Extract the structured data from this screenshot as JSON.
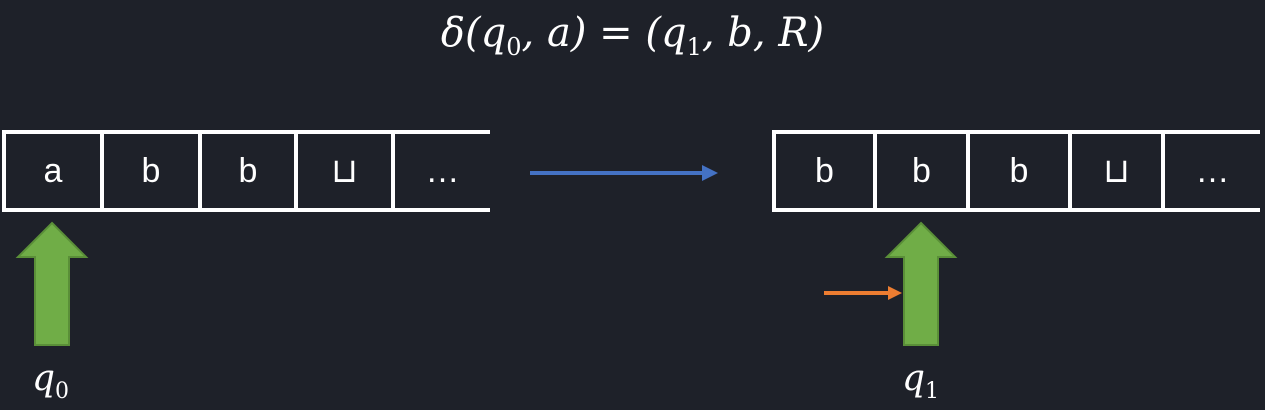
{
  "transition": {
    "fn": "δ",
    "state_in": "q",
    "state_in_index": "0",
    "symbol_in": "a",
    "state_out": "q",
    "state_out_index": "1",
    "symbol_out": "b",
    "direction": "R"
  },
  "tape_before": {
    "cells": [
      "a",
      "b",
      "b",
      "⊔",
      "…"
    ],
    "state_label": "q",
    "state_index": "0"
  },
  "tape_after": {
    "cells": [
      "b",
      "b",
      "b",
      "⊔",
      "…"
    ],
    "state_label": "q",
    "state_index": "1"
  },
  "colors": {
    "background": "#1e2129",
    "head_arrow": "#70ad47",
    "head_arrow_border": "#5a8f38",
    "transition_arrow": "#4472c4",
    "move_arrow": "#ed7d31",
    "written_symbol": "#e8120c",
    "blank_symbol": "#f4a582"
  }
}
